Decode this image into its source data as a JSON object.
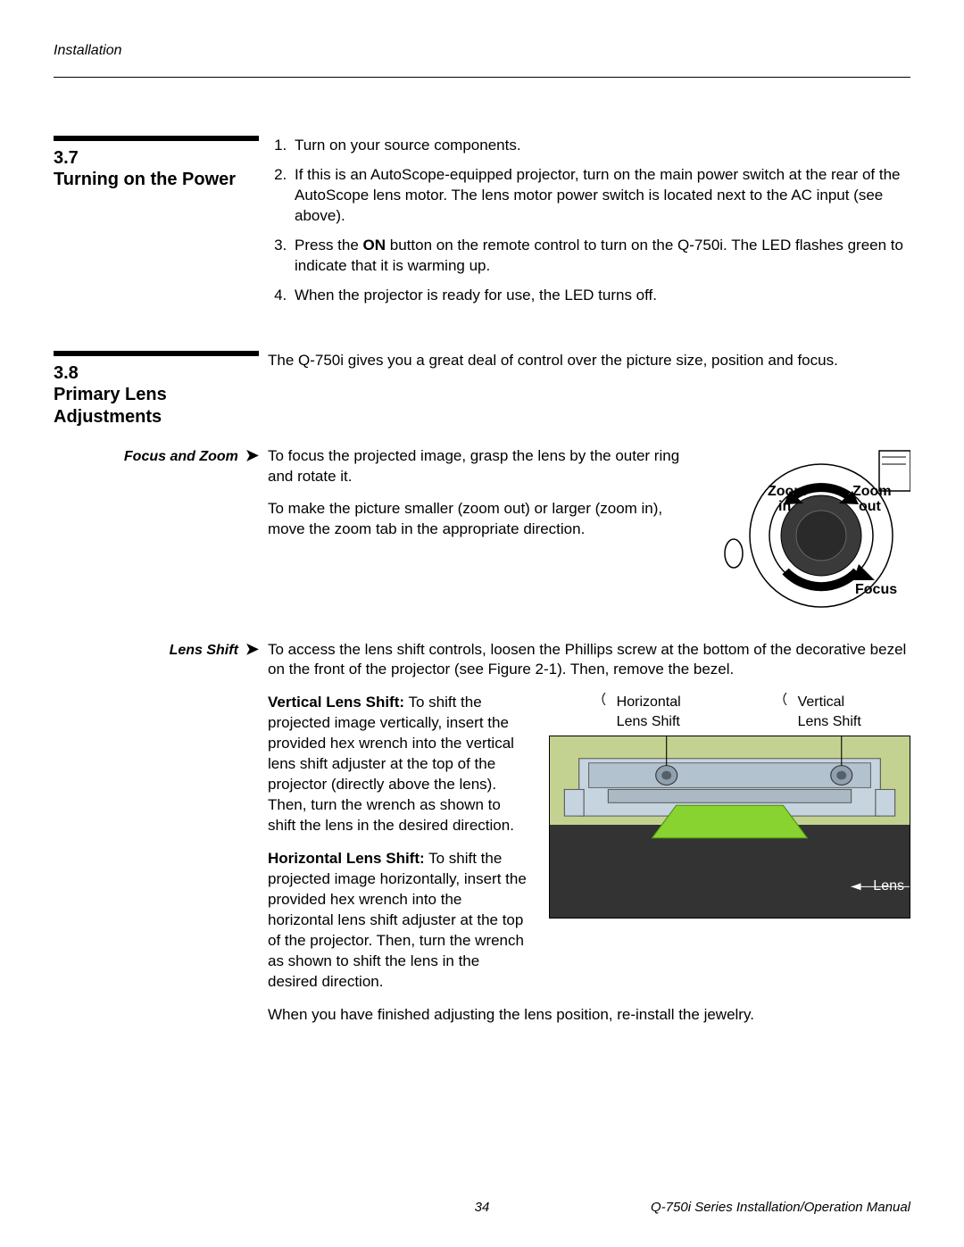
{
  "header": {
    "section_label": "Installation"
  },
  "section37": {
    "number": "3.7",
    "title": "Turning on the Power",
    "steps": [
      "Turn on your source components.",
      "If this is an AutoScope-equipped projector, turn on the main power switch at the rear of the AutoScope lens motor. The lens motor power switch is located next to the AC input (see above).",
      "Press the <b>ON</b> button on the remote control to turn on the Q-750i. The LED flashes green to indicate that it is warming up.",
      "When the projector is ready for use, the LED turns off."
    ]
  },
  "section38": {
    "number": "3.8",
    "title": "Primary Lens Adjustments",
    "intro": "The Q-750i gives you a great deal of control over the picture size, position and focus."
  },
  "focus_zoom": {
    "label": "Focus and Zoom",
    "p1": "To focus the projected image, grasp the lens by the outer ring and rotate it.",
    "p2": "To make the picture smaller (zoom out) or larger (zoom in), move the zoom tab in the appropriate direction.",
    "svg_labels": {
      "zoom_in": "Zoom\nin",
      "zoom_out": "Zoom\nout",
      "focus": "Focus"
    }
  },
  "lens_shift": {
    "label": "Lens Shift",
    "intro": "To access the lens shift controls, loosen the Phillips screw at the bottom of the decorative bezel on the front of the projector (see Figure 2-1). Then, remove the bezel.",
    "vertical_title": "Vertical Lens Shift:",
    "vertical_text": " To shift the projected image vertically, insert the provided hex wrench into the vertical lens shift adjuster at the top of the projector (directly above the lens). Then, turn the wrench as shown to shift the lens in the desired direction.",
    "horizontal_title": "Horizontal Lens Shift:",
    "horizontal_text": " To shift the projected image horizontally, insert the provided hex wrench into the horizontal lens shift adjuster at the top of the projector. Then, turn the wrench as shown to shift the lens in the desired direction.",
    "outro": "When you have finished adjusting the lens position, re-install the jewelry.",
    "callouts": {
      "horizontal": "Horizontal\nLens Shift",
      "vertical": "Vertical\nLens Shift",
      "lens": "Lens"
    },
    "diagram_colors": {
      "panel_bg": "#c3d291",
      "dark_bg": "#333333",
      "lens_green": "#88d32f",
      "metal": "#c6d4e0"
    }
  },
  "footer": {
    "page": "34",
    "manual": "Q-750i Series Installation/Operation Manual"
  }
}
